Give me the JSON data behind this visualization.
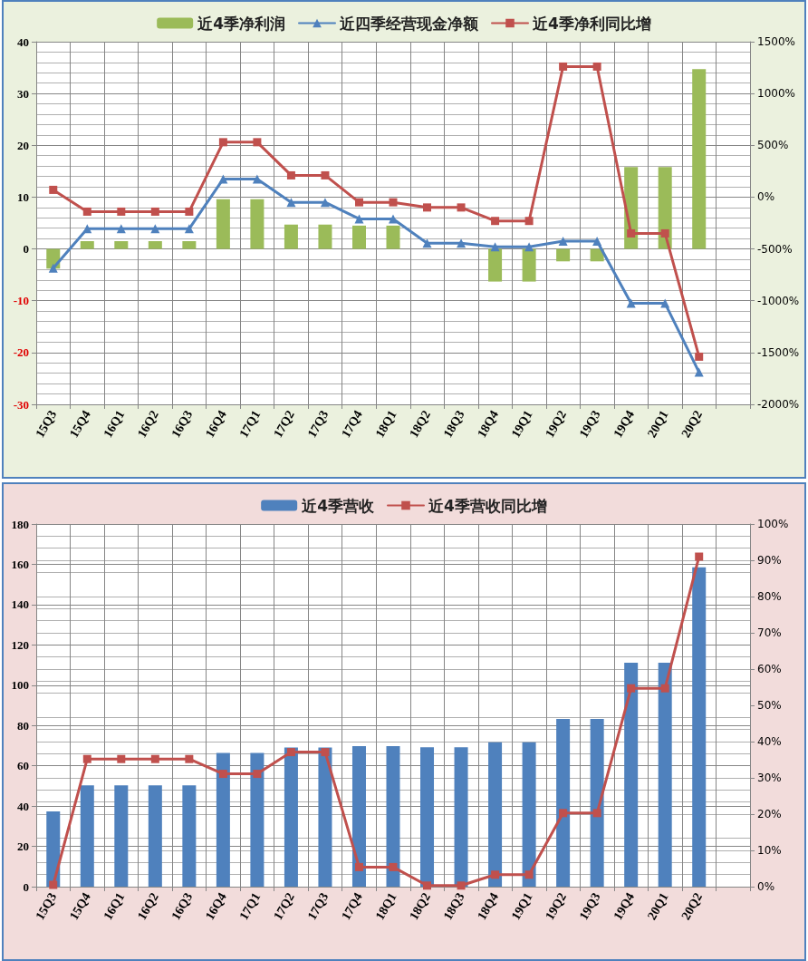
{
  "chart_data": [
    {
      "type": "bar",
      "categories": [
        "15Q3",
        "15Q4",
        "16Q1",
        "16Q2",
        "16Q3",
        "16Q4",
        "17Q1",
        "17Q2",
        "17Q3",
        "17Q4",
        "18Q1",
        "18Q2",
        "18Q3",
        "18Q4",
        "19Q1",
        "19Q2",
        "19Q3",
        "19Q4",
        "20Q1",
        "20Q2",
        null
      ],
      "series": [
        {
          "name": "近4季净利润",
          "color": "#9bbb59",
          "values": [
            -3.8,
            1.5,
            1.5,
            1.5,
            1.5,
            9.6,
            9.6,
            4.7,
            4.7,
            4.5,
            4.5,
            0,
            0,
            -6.3,
            -6.3,
            -2.4,
            -2.4,
            15.8,
            15.8,
            34.7,
            null
          ]
        },
        {
          "name": "近四季经营现金净额",
          "type": "line",
          "color": "#4f81bd",
          "marker": "triangle",
          "values": [
            -3.7,
            3.9,
            3.9,
            3.9,
            3.9,
            13.5,
            13.5,
            9.0,
            9.0,
            5.8,
            5.8,
            1.1,
            1.1,
            0.4,
            0.4,
            1.5,
            1.5,
            -10.5,
            -10.5,
            -23.8,
            null
          ]
        },
        {
          "name": "近4季净利同比增",
          "type": "line",
          "color": "#c0504d",
          "marker": "square",
          "axis": "y2",
          "values": [
            70,
            -140,
            -140,
            -140,
            -140,
            530,
            530,
            210,
            210,
            -50,
            -50,
            -100,
            -100,
            -230,
            -230,
            1260,
            1260,
            -350,
            -350,
            -1540,
            null
          ]
        }
      ],
      "ylim": [
        -30,
        40
      ],
      "yticks": [
        -30,
        -20,
        -10,
        0,
        10,
        20,
        30,
        40
      ],
      "y2lim": [
        -2000,
        1500
      ],
      "y2ticks": [
        {
          "value": -2000,
          "label": "-2000%"
        },
        {
          "value": -1500,
          "label": "-1500%"
        },
        {
          "value": -1000,
          "label": "-1000%"
        },
        {
          "value": -500,
          "label": "-500%"
        },
        {
          "value": 0,
          "label": "0%"
        },
        {
          "value": 500,
          "label": "500%"
        },
        {
          "value": 1000,
          "label": "1000%"
        },
        {
          "value": 1500,
          "label": "1500%"
        }
      ],
      "grid": true,
      "legend": "top"
    },
    {
      "type": "bar",
      "categories": [
        "15Q3",
        "15Q4",
        "16Q1",
        "16Q2",
        "16Q3",
        "16Q4",
        "17Q1",
        "17Q2",
        "17Q3",
        "17Q4",
        "18Q1",
        "18Q2",
        "18Q3",
        "18Q4",
        "19Q1",
        "19Q2",
        "19Q3",
        "19Q4",
        "20Q1",
        "20Q2",
        null
      ],
      "series": [
        {
          "name": "近4季营收",
          "color": "#4f81bd",
          "values": [
            37.3,
            50.3,
            50.3,
            50.3,
            50.3,
            66.4,
            66.4,
            69.1,
            69.1,
            69.7,
            69.7,
            69.2,
            69.2,
            71.7,
            71.7,
            83.3,
            83.3,
            111.1,
            111.1,
            158.5,
            null
          ]
        },
        {
          "name": "近4季营收同比增",
          "type": "line",
          "color": "#c0504d",
          "marker": "square",
          "axis": "y2",
          "values": [
            0.5,
            35.2,
            35.2,
            35.2,
            35.2,
            31.1,
            31.1,
            37.1,
            37.1,
            5.4,
            5.4,
            0.3,
            0.3,
            3.3,
            3.3,
            20.3,
            20.3,
            54.7,
            54.7,
            91.0,
            null
          ]
        }
      ],
      "ylim": [
        0,
        180
      ],
      "yticks": [
        0,
        20,
        40,
        60,
        80,
        100,
        120,
        140,
        160,
        180
      ],
      "y2lim": [
        0,
        100
      ],
      "y2ticks": [
        {
          "value": 0,
          "label": "0%"
        },
        {
          "value": 10,
          "label": "10%"
        },
        {
          "value": 20,
          "label": "20%"
        },
        {
          "value": 30,
          "label": "30%"
        },
        {
          "value": 40,
          "label": "40%"
        },
        {
          "value": 50,
          "label": "50%"
        },
        {
          "value": 60,
          "label": "60%"
        },
        {
          "value": 70,
          "label": "70%"
        },
        {
          "value": 80,
          "label": "80%"
        },
        {
          "value": 90,
          "label": "90%"
        },
        {
          "value": 100,
          "label": "100%"
        }
      ],
      "grid": true,
      "legend": "top"
    }
  ]
}
